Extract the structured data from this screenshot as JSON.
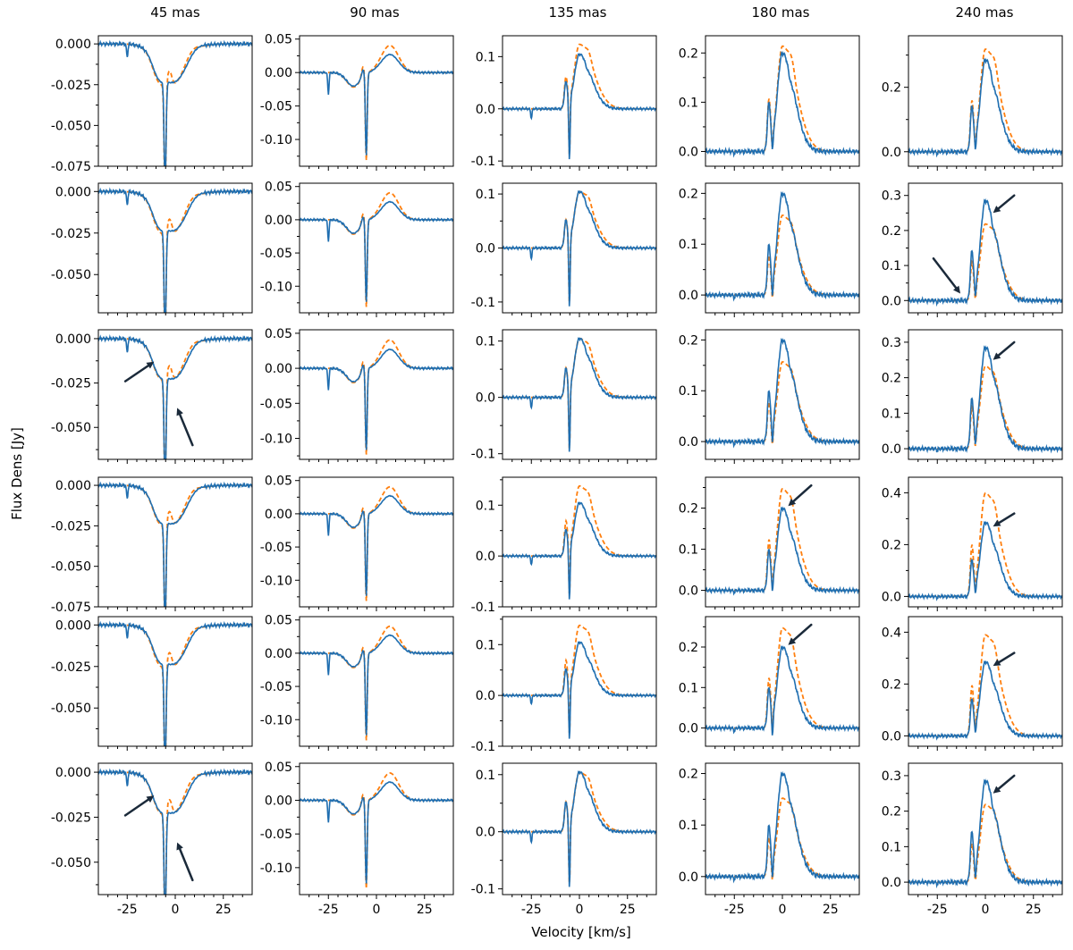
{
  "figure": {
    "xlabel": "Velocity [km/s]",
    "ylabel": "Flux Dens [Jy]",
    "column_titles": [
      "45 mas",
      "90 mas",
      "135 mas",
      "180 mas",
      "240 mas"
    ],
    "colors": {
      "observed": "#1f6eb0",
      "model": "#ff7f0e",
      "arrow": "#1b2a3a",
      "frame": "#000000"
    }
  },
  "chart_data": {
    "type": "line",
    "layout": "6 rows x 5 columns of panels",
    "series": [
      {
        "style": "solid",
        "color": "#1f6eb0"
      },
      {
        "style": "dashed",
        "color": "#ff7f0e"
      }
    ],
    "xlim": [
      -40,
      40
    ],
    "xticks": [
      -25,
      0,
      25
    ],
    "xtick_labels": [
      "-25",
      "0",
      "25"
    ],
    "columns": [
      {
        "title": "45 mas",
        "kind": "absorption",
        "rows": [
          {
            "ylim": [
              -0.075,
              0.005
            ],
            "yticks": [
              0.0,
              -0.025,
              -0.05,
              -0.075
            ],
            "ytick_labels": [
              "0.000",
              "-0.025",
              "-0.050",
              "-0.075"
            ],
            "obs_min": -0.067,
            "model_min": -0.072,
            "arrows": []
          },
          {
            "ylim": [
              -0.073,
              0.005
            ],
            "yticks": [
              0.0,
              -0.025,
              -0.05
            ],
            "ytick_labels": [
              "0.000",
              "-0.025",
              "-0.050"
            ],
            "obs_min": -0.067,
            "model_min": -0.072,
            "arrows": []
          },
          {
            "ylim": [
              -0.068,
              0.005
            ],
            "yticks": [
              0.0,
              -0.025,
              -0.05
            ],
            "ytick_labels": [
              "0.000",
              "-0.025",
              "-0.050"
            ],
            "obs_min": -0.064,
            "model_min": -0.066,
            "arrows": [
              {
                "x0": -26,
                "y0": -0.024,
                "x1": -11,
                "y1": -0.013
              },
              {
                "x0": 9,
                "y0": -0.06,
                "x1": 1,
                "y1": -0.039
              }
            ]
          },
          {
            "ylim": [
              -0.075,
              0.005
            ],
            "yticks": [
              0.0,
              -0.025,
              -0.05,
              -0.075
            ],
            "ytick_labels": [
              "0.000",
              "-0.025",
              "-0.050",
              "-0.075"
            ],
            "obs_min": -0.067,
            "model_min": -0.07,
            "arrows": []
          },
          {
            "ylim": [
              -0.073,
              0.005
            ],
            "yticks": [
              0.0,
              -0.025,
              -0.05
            ],
            "ytick_labels": [
              "0.000",
              "-0.025",
              "-0.050"
            ],
            "obs_min": -0.067,
            "model_min": -0.072,
            "arrows": []
          },
          {
            "ylim": [
              -0.068,
              0.005
            ],
            "yticks": [
              0.0,
              -0.025,
              -0.05
            ],
            "ytick_labels": [
              "0.000",
              "-0.025",
              "-0.050"
            ],
            "obs_min": -0.064,
            "model_min": -0.066,
            "arrows": [
              {
                "x0": -26,
                "y0": -0.024,
                "x1": -11,
                "y1": -0.013
              },
              {
                "x0": 9,
                "y0": -0.06,
                "x1": 1,
                "y1": -0.039
              }
            ]
          }
        ]
      },
      {
        "title": "90 mas",
        "kind": "mixed",
        "rows": [
          {
            "ylim": [
              -0.14,
              0.055
            ],
            "yticks": [
              0.05,
              0.0,
              -0.05,
              -0.1
            ],
            "ytick_labels": [
              "0.05",
              "0.00",
              "-0.05",
              "-0.10"
            ],
            "obs_min": -0.127,
            "model_min": -0.135,
            "obs_peak": 0.03,
            "model_peak": 0.045,
            "arrows": []
          },
          {
            "ylim": [
              -0.14,
              0.055
            ],
            "yticks": [
              0.05,
              0.0,
              -0.05,
              -0.1
            ],
            "ytick_labels": [
              "0.05",
              "0.00",
              "-0.05",
              "-0.10"
            ],
            "obs_min": -0.127,
            "model_min": -0.135,
            "obs_peak": 0.03,
            "model_peak": 0.045,
            "arrows": []
          },
          {
            "ylim": [
              -0.13,
              0.055
            ],
            "yticks": [
              0.05,
              0.0,
              -0.05,
              -0.1
            ],
            "ytick_labels": [
              "0.05",
              "0.00",
              "-0.05",
              "-0.10"
            ],
            "obs_min": -0.12,
            "model_min": -0.127,
            "obs_peak": 0.03,
            "model_peak": 0.045,
            "arrows": []
          },
          {
            "ylim": [
              -0.14,
              0.055
            ],
            "yticks": [
              0.05,
              0.0,
              -0.05,
              -0.1
            ],
            "ytick_labels": [
              "0.05",
              "0.00",
              "-0.05",
              "-0.10"
            ],
            "obs_min": -0.127,
            "model_min": -0.135,
            "obs_peak": 0.03,
            "model_peak": 0.045,
            "arrows": []
          },
          {
            "ylim": [
              -0.14,
              0.055
            ],
            "yticks": [
              0.05,
              0.0,
              -0.05,
              -0.1
            ],
            "ytick_labels": [
              "0.05",
              "0.00",
              "-0.05",
              "-0.10"
            ],
            "obs_min": -0.127,
            "model_min": -0.135,
            "obs_peak": 0.03,
            "model_peak": 0.045,
            "arrows": []
          },
          {
            "ylim": [
              -0.14,
              0.055
            ],
            "yticks": [
              0.05,
              0.0,
              -0.05,
              -0.1
            ],
            "ytick_labels": [
              "0.05",
              "0.00",
              "-0.05",
              "-0.10"
            ],
            "obs_min": -0.127,
            "model_min": -0.135,
            "obs_peak": 0.03,
            "model_peak": 0.045,
            "arrows": []
          }
        ]
      },
      {
        "title": "135 mas",
        "kind": "emission",
        "rows": [
          {
            "ylim": [
              -0.11,
              0.14
            ],
            "yticks": [
              0.1,
              0.0,
              -0.1
            ],
            "ytick_labels": [
              "0.1",
              "0.0",
              "-0.1"
            ],
            "obs_peak": 0.11,
            "model_peak": 0.13,
            "dip": -0.1,
            "arrows": []
          },
          {
            "ylim": [
              -0.12,
              0.12
            ],
            "yticks": [
              0.1,
              0.0,
              -0.1
            ],
            "ytick_labels": [
              "0.1",
              "0.0",
              "-0.1"
            ],
            "obs_peak": 0.11,
            "model_peak": 0.11,
            "dip": -0.11,
            "arrows": []
          },
          {
            "ylim": [
              -0.11,
              0.12
            ],
            "yticks": [
              0.1,
              0.0,
              -0.1
            ],
            "ytick_labels": [
              "0.1",
              "0.0",
              "-0.1"
            ],
            "obs_peak": 0.11,
            "model_peak": 0.11,
            "dip": -0.1,
            "arrows": []
          },
          {
            "ylim": [
              -0.1,
              0.155
            ],
            "yticks": [
              0.1,
              0.0,
              -0.1
            ],
            "ytick_labels": [
              "0.1",
              "0.0",
              "-0.1"
            ],
            "obs_peak": 0.11,
            "model_peak": 0.145,
            "dip": -0.09,
            "arrows": []
          },
          {
            "ylim": [
              -0.1,
              0.155
            ],
            "yticks": [
              0.1,
              0.0,
              -0.1
            ],
            "ytick_labels": [
              "0.1",
              "0.0",
              "-0.1"
            ],
            "obs_peak": 0.11,
            "model_peak": 0.145,
            "dip": -0.09,
            "arrows": []
          },
          {
            "ylim": [
              -0.11,
              0.12
            ],
            "yticks": [
              0.1,
              0.0,
              -0.1
            ],
            "ytick_labels": [
              "0.1",
              "0.0",
              "-0.1"
            ],
            "obs_peak": 0.11,
            "model_peak": 0.11,
            "dip": -0.1,
            "arrows": []
          }
        ]
      },
      {
        "title": "180 mas",
        "kind": "emission",
        "rows": [
          {
            "ylim": [
              -0.03,
              0.235
            ],
            "yticks": [
              0.2,
              0.1,
              0.0
            ],
            "ytick_labels": [
              "0.2",
              "0.1",
              "0.0"
            ],
            "obs_peak": 0.21,
            "model_peak": 0.225,
            "dip": -0.025,
            "arrows": []
          },
          {
            "ylim": [
              -0.035,
              0.22
            ],
            "yticks": [
              0.2,
              0.1,
              0.0
            ],
            "ytick_labels": [
              "0.2",
              "0.1",
              "0.0"
            ],
            "obs_peak": 0.21,
            "model_peak": 0.165,
            "dip": -0.03,
            "arrows": []
          },
          {
            "ylim": [
              -0.035,
              0.22
            ],
            "yticks": [
              0.2,
              0.1,
              0.0
            ],
            "ytick_labels": [
              "0.2",
              "0.1",
              "0.0"
            ],
            "obs_peak": 0.21,
            "model_peak": 0.165,
            "dip": -0.03,
            "arrows": []
          },
          {
            "ylim": [
              -0.04,
              0.275
            ],
            "yticks": [
              0.2,
              0.1,
              0.0
            ],
            "ytick_labels": [
              "0.2",
              "0.1",
              "0.0"
            ],
            "obs_peak": 0.21,
            "model_peak": 0.26,
            "dip": -0.03,
            "arrows": [
              {
                "x0": 15,
                "y0": 0.255,
                "x1": 3,
                "y1": 0.205
              }
            ]
          },
          {
            "ylim": [
              -0.045,
              0.275
            ],
            "yticks": [
              0.2,
              0.1,
              0.0
            ],
            "ytick_labels": [
              "0.2",
              "0.1",
              "0.0"
            ],
            "obs_peak": 0.21,
            "model_peak": 0.26,
            "dip": -0.045,
            "arrows": [
              {
                "x0": 15,
                "y0": 0.255,
                "x1": 3,
                "y1": 0.205
              }
            ]
          },
          {
            "ylim": [
              -0.035,
              0.22
            ],
            "yticks": [
              0.2,
              0.1,
              0.0
            ],
            "ytick_labels": [
              "0.2",
              "0.1",
              "0.0"
            ],
            "obs_peak": 0.21,
            "model_peak": 0.16,
            "dip": -0.03,
            "arrows": []
          }
        ]
      },
      {
        "title": "240 mas",
        "kind": "emission",
        "rows": [
          {
            "ylim": [
              -0.045,
              0.36
            ],
            "yticks": [
              0.2,
              0.0
            ],
            "ytick_labels": [
              "0.2",
              "0.0"
            ],
            "obs_peak": 0.3,
            "model_peak": 0.335,
            "dip": -0.035,
            "arrows": []
          },
          {
            "ylim": [
              -0.035,
              0.335
            ],
            "yticks": [
              0.3,
              0.2,
              0.1,
              0.0
            ],
            "ytick_labels": [
              "0.3",
              "0.2",
              "0.1",
              "0.0"
            ],
            "obs_peak": 0.3,
            "model_peak": 0.23,
            "dip": -0.03,
            "arrows": [
              {
                "x0": 15,
                "y0": 0.3,
                "x1": 4,
                "y1": 0.25
              },
              {
                "x0": -27,
                "y0": 0.12,
                "x1": -13,
                "y1": 0.02
              }
            ]
          },
          {
            "ylim": [
              -0.03,
              0.335
            ],
            "yticks": [
              0.3,
              0.2,
              0.1,
              0.0
            ],
            "ytick_labels": [
              "0.3",
              "0.2",
              "0.1",
              "0.0"
            ],
            "obs_peak": 0.3,
            "model_peak": 0.245,
            "dip": -0.03,
            "arrows": [
              {
                "x0": 15,
                "y0": 0.3,
                "x1": 4,
                "y1": 0.25
              }
            ]
          },
          {
            "ylim": [
              -0.04,
              0.46
            ],
            "yticks": [
              0.4,
              0.2,
              0.0
            ],
            "ytick_labels": [
              "0.4",
              "0.2",
              "0.0"
            ],
            "obs_peak": 0.3,
            "model_peak": 0.42,
            "dip": -0.03,
            "arrows": [
              {
                "x0": 15,
                "y0": 0.32,
                "x1": 4,
                "y1": 0.27
              }
            ]
          },
          {
            "ylim": [
              -0.04,
              0.46
            ],
            "yticks": [
              0.4,
              0.2,
              0.0
            ],
            "ytick_labels": [
              "0.4",
              "0.2",
              "0.0"
            ],
            "obs_peak": 0.3,
            "model_peak": 0.41,
            "dip": -0.03,
            "arrows": [
              {
                "x0": 15,
                "y0": 0.32,
                "x1": 4,
                "y1": 0.27
              }
            ]
          },
          {
            "ylim": [
              -0.035,
              0.335
            ],
            "yticks": [
              0.3,
              0.2,
              0.1,
              0.0
            ],
            "ytick_labels": [
              "0.3",
              "0.2",
              "0.1",
              "0.0"
            ],
            "obs_peak": 0.3,
            "model_peak": 0.23,
            "dip": -0.03,
            "arrows": [
              {
                "x0": 15,
                "y0": 0.3,
                "x1": 4,
                "y1": 0.25
              }
            ]
          }
        ]
      }
    ]
  }
}
